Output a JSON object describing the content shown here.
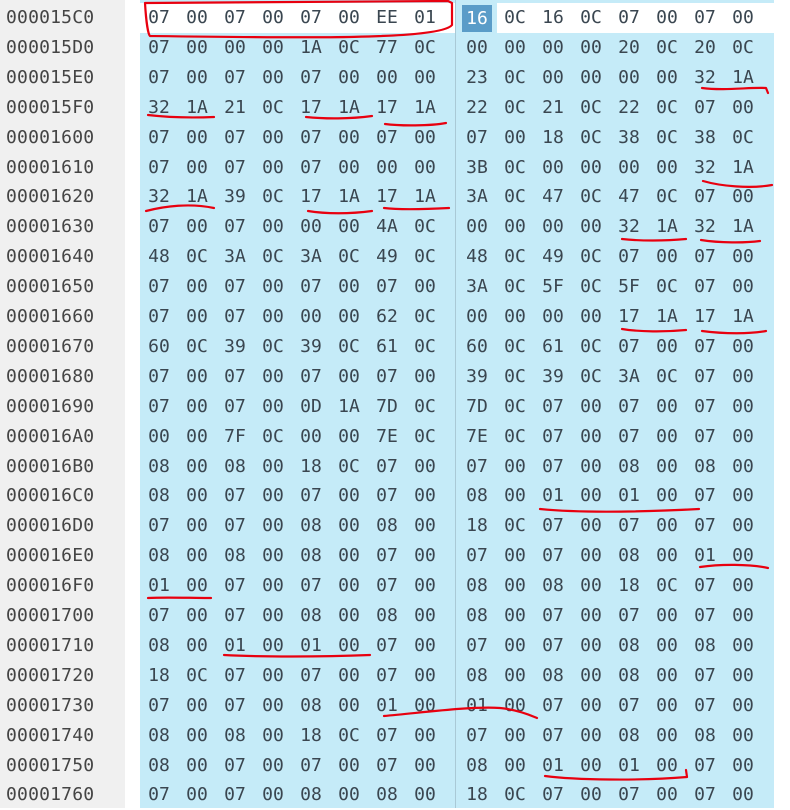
{
  "hex_view": {
    "selected_byte": "16",
    "annotation_color": "#e8000f",
    "rows": [
      {
        "offset": "000015C0",
        "bytes": [
          "07",
          "00",
          "07",
          "00",
          "07",
          "00",
          "EE",
          "01",
          "16",
          "0C",
          "16",
          "0C",
          "07",
          "00",
          "07",
          "00"
        ]
      },
      {
        "offset": "000015D0",
        "bytes": [
          "07",
          "00",
          "00",
          "00",
          "1A",
          "0C",
          "77",
          "0C",
          "00",
          "00",
          "00",
          "00",
          "20",
          "0C",
          "20",
          "0C"
        ]
      },
      {
        "offset": "000015E0",
        "bytes": [
          "07",
          "00",
          "07",
          "00",
          "07",
          "00",
          "00",
          "00",
          "23",
          "0C",
          "00",
          "00",
          "00",
          "00",
          "32",
          "1A"
        ]
      },
      {
        "offset": "000015F0",
        "bytes": [
          "32",
          "1A",
          "21",
          "0C",
          "17",
          "1A",
          "17",
          "1A",
          "22",
          "0C",
          "21",
          "0C",
          "22",
          "0C",
          "07",
          "00"
        ]
      },
      {
        "offset": "00001600",
        "bytes": [
          "07",
          "00",
          "07",
          "00",
          "07",
          "00",
          "07",
          "00",
          "07",
          "00",
          "18",
          "0C",
          "38",
          "0C",
          "38",
          "0C"
        ]
      },
      {
        "offset": "00001610",
        "bytes": [
          "07",
          "00",
          "07",
          "00",
          "07",
          "00",
          "00",
          "00",
          "3B",
          "0C",
          "00",
          "00",
          "00",
          "00",
          "32",
          "1A"
        ]
      },
      {
        "offset": "00001620",
        "bytes": [
          "32",
          "1A",
          "39",
          "0C",
          "17",
          "1A",
          "17",
          "1A",
          "3A",
          "0C",
          "47",
          "0C",
          "47",
          "0C",
          "07",
          "00"
        ]
      },
      {
        "offset": "00001630",
        "bytes": [
          "07",
          "00",
          "07",
          "00",
          "00",
          "00",
          "4A",
          "0C",
          "00",
          "00",
          "00",
          "00",
          "32",
          "1A",
          "32",
          "1A"
        ]
      },
      {
        "offset": "00001640",
        "bytes": [
          "48",
          "0C",
          "3A",
          "0C",
          "3A",
          "0C",
          "49",
          "0C",
          "48",
          "0C",
          "49",
          "0C",
          "07",
          "00",
          "07",
          "00"
        ]
      },
      {
        "offset": "00001650",
        "bytes": [
          "07",
          "00",
          "07",
          "00",
          "07",
          "00",
          "07",
          "00",
          "3A",
          "0C",
          "5F",
          "0C",
          "5F",
          "0C",
          "07",
          "00"
        ]
      },
      {
        "offset": "00001660",
        "bytes": [
          "07",
          "00",
          "07",
          "00",
          "00",
          "00",
          "62",
          "0C",
          "00",
          "00",
          "00",
          "00",
          "17",
          "1A",
          "17",
          "1A"
        ]
      },
      {
        "offset": "00001670",
        "bytes": [
          "60",
          "0C",
          "39",
          "0C",
          "39",
          "0C",
          "61",
          "0C",
          "60",
          "0C",
          "61",
          "0C",
          "07",
          "00",
          "07",
          "00"
        ]
      },
      {
        "offset": "00001680",
        "bytes": [
          "07",
          "00",
          "07",
          "00",
          "07",
          "00",
          "07",
          "00",
          "39",
          "0C",
          "39",
          "0C",
          "3A",
          "0C",
          "07",
          "00"
        ]
      },
      {
        "offset": "00001690",
        "bytes": [
          "07",
          "00",
          "07",
          "00",
          "0D",
          "1A",
          "7D",
          "0C",
          "7D",
          "0C",
          "07",
          "00",
          "07",
          "00",
          "07",
          "00"
        ]
      },
      {
        "offset": "000016A0",
        "bytes": [
          "00",
          "00",
          "7F",
          "0C",
          "00",
          "00",
          "7E",
          "0C",
          "7E",
          "0C",
          "07",
          "00",
          "07",
          "00",
          "07",
          "00"
        ]
      },
      {
        "offset": "000016B0",
        "bytes": [
          "08",
          "00",
          "08",
          "00",
          "18",
          "0C",
          "07",
          "00",
          "07",
          "00",
          "07",
          "00",
          "08",
          "00",
          "08",
          "00"
        ]
      },
      {
        "offset": "000016C0",
        "bytes": [
          "08",
          "00",
          "07",
          "00",
          "07",
          "00",
          "07",
          "00",
          "08",
          "00",
          "01",
          "00",
          "01",
          "00",
          "07",
          "00"
        ]
      },
      {
        "offset": "000016D0",
        "bytes": [
          "07",
          "00",
          "07",
          "00",
          "08",
          "00",
          "08",
          "00",
          "18",
          "0C",
          "07",
          "00",
          "07",
          "00",
          "07",
          "00"
        ]
      },
      {
        "offset": "000016E0",
        "bytes": [
          "08",
          "00",
          "08",
          "00",
          "08",
          "00",
          "07",
          "00",
          "07",
          "00",
          "07",
          "00",
          "08",
          "00",
          "01",
          "00"
        ]
      },
      {
        "offset": "000016F0",
        "bytes": [
          "01",
          "00",
          "07",
          "00",
          "07",
          "00",
          "07",
          "00",
          "08",
          "00",
          "08",
          "00",
          "18",
          "0C",
          "07",
          "00"
        ]
      },
      {
        "offset": "00001700",
        "bytes": [
          "07",
          "00",
          "07",
          "00",
          "08",
          "00",
          "08",
          "00",
          "08",
          "00",
          "07",
          "00",
          "07",
          "00",
          "07",
          "00"
        ]
      },
      {
        "offset": "00001710",
        "bytes": [
          "08",
          "00",
          "01",
          "00",
          "01",
          "00",
          "07",
          "00",
          "07",
          "00",
          "07",
          "00",
          "08",
          "00",
          "08",
          "00"
        ]
      },
      {
        "offset": "00001720",
        "bytes": [
          "18",
          "0C",
          "07",
          "00",
          "07",
          "00",
          "07",
          "00",
          "08",
          "00",
          "08",
          "00",
          "08",
          "00",
          "07",
          "00"
        ]
      },
      {
        "offset": "00001730",
        "bytes": [
          "07",
          "00",
          "07",
          "00",
          "08",
          "00",
          "01",
          "00",
          "01",
          "00",
          "07",
          "00",
          "07",
          "00",
          "07",
          "00"
        ]
      },
      {
        "offset": "00001740",
        "bytes": [
          "08",
          "00",
          "08",
          "00",
          "18",
          "0C",
          "07",
          "00",
          "07",
          "00",
          "07",
          "00",
          "08",
          "00",
          "08",
          "00"
        ]
      },
      {
        "offset": "00001750",
        "bytes": [
          "08",
          "00",
          "07",
          "00",
          "07",
          "00",
          "07",
          "00",
          "08",
          "00",
          "01",
          "00",
          "01",
          "00",
          "07",
          "00"
        ]
      },
      {
        "offset": "00001760",
        "bytes": [
          "07",
          "00",
          "07",
          "00",
          "08",
          "00",
          "08",
          "00",
          "18",
          "0C",
          "07",
          "00",
          "07",
          "00",
          "07",
          "00"
        ]
      }
    ]
  }
}
